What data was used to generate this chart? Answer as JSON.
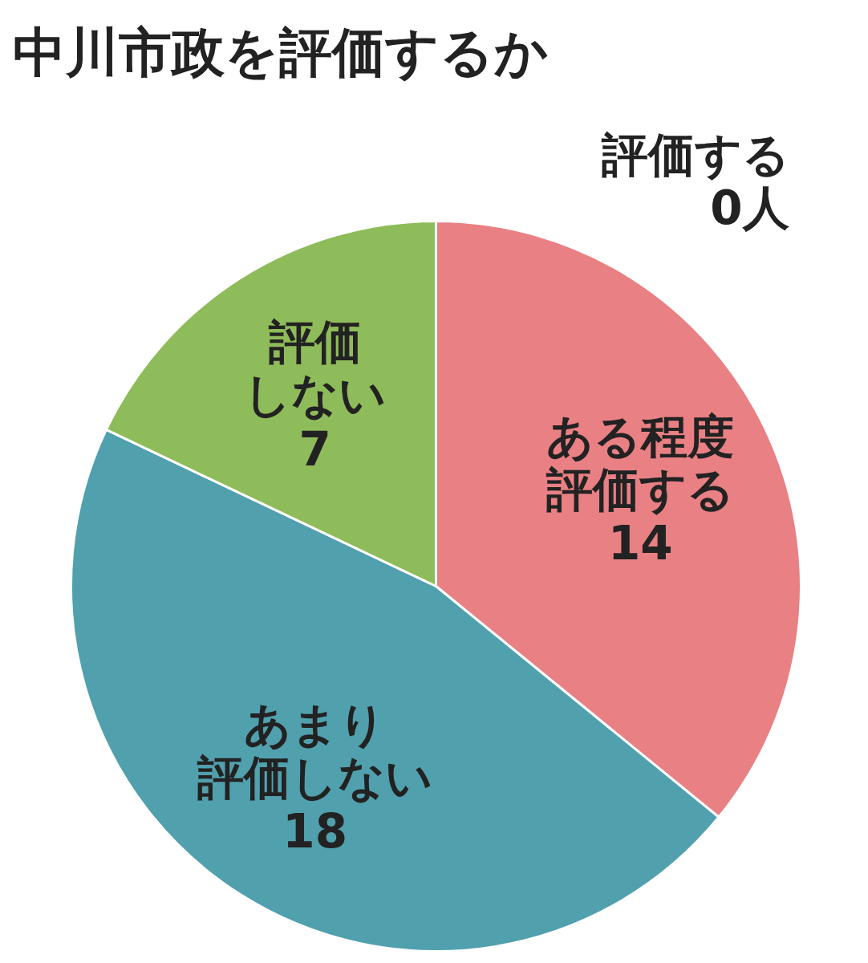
{
  "chart_data": {
    "type": "pie",
    "title": "中川市政を評価するか",
    "categories": [
      "評価する",
      "ある程度評価する",
      "あまり評価しない",
      "評価しない"
    ],
    "values": [
      0,
      14,
      18,
      7
    ],
    "colors": [
      "#e98084",
      "#e98084",
      "#51a0ae",
      "#8fbc5a"
    ],
    "value_labels": [
      "0人",
      "14",
      "18",
      "7"
    ]
  }
}
